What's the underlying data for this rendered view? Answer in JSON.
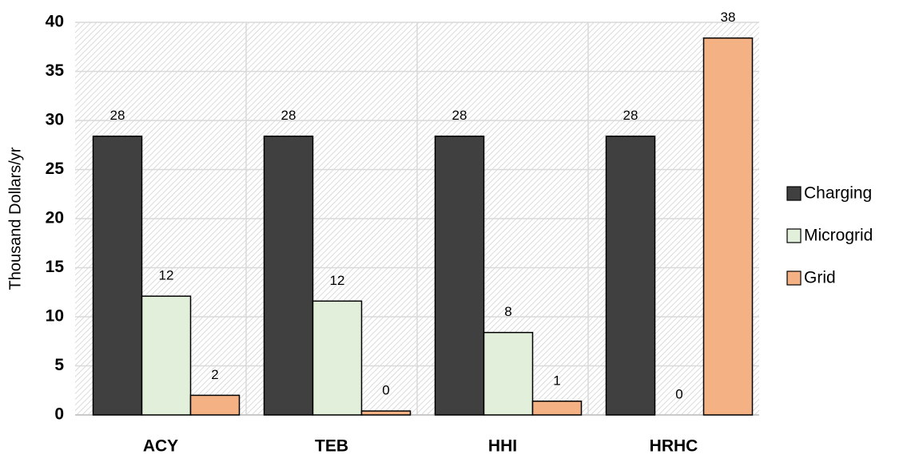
{
  "chart_data": {
    "type": "bar",
    "y_label": "Thousand Dollars/yr",
    "categories": [
      "ACY",
      "TEB",
      "HHI",
      "HRHC"
    ],
    "series": [
      {
        "name": "Charging",
        "color": "#404040",
        "values": [
          28.4,
          28.4,
          28.4,
          28.4
        ],
        "value_labels": [
          "28",
          "28",
          "28",
          "28"
        ]
      },
      {
        "name": "Microgrid",
        "color": "#e2efda",
        "values": [
          12.1,
          11.6,
          8.4,
          0
        ],
        "value_labels": [
          "12",
          "12",
          "8",
          "0"
        ]
      },
      {
        "name": "Grid",
        "color": "#f4b183",
        "values": [
          2.0,
          0.4,
          1.4,
          38.4
        ],
        "value_labels": [
          "2",
          "0",
          "1",
          "38"
        ]
      }
    ],
    "ylim": [
      0,
      40
    ],
    "yticks": [
      0,
      5,
      10,
      15,
      20,
      25,
      30,
      35,
      40
    ],
    "grid": true,
    "legend": "right"
  }
}
